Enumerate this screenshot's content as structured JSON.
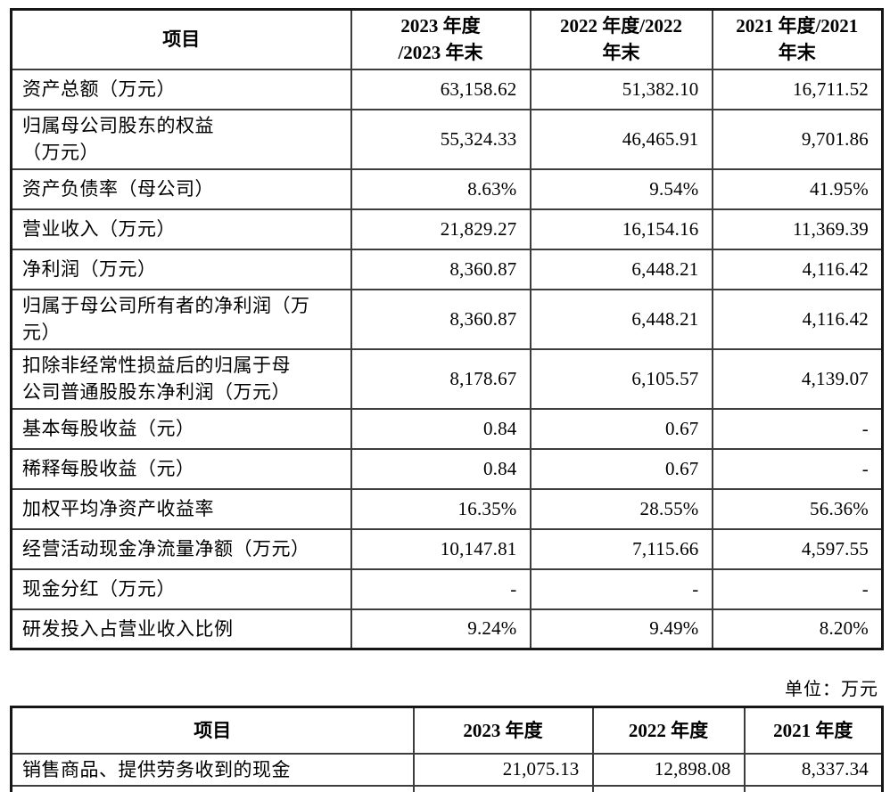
{
  "colors": {
    "background": "#ffffff",
    "text": "#000000",
    "outer_border": "#161616",
    "inner_border": "#3d3d3d"
  },
  "unit_label": "单位：万元",
  "table1": {
    "headers": [
      "项目",
      "2023 年度\n/2023 年末",
      "2022 年度/2022\n年末",
      "2021 年度/2021\n年末"
    ],
    "rows": [
      {
        "label": "资产总额（万元）",
        "values": [
          "63,158.62",
          "51,382.10",
          "16,711.52"
        ]
      },
      {
        "label": "归属母公司股东的权益\n（万元）",
        "values": [
          "55,324.33",
          "46,465.91",
          "9,701.86"
        ]
      },
      {
        "label": "资产负债率（母公司）",
        "values": [
          "8.63%",
          "9.54%",
          "41.95%"
        ]
      },
      {
        "label": "营业收入（万元）",
        "values": [
          "21,829.27",
          "16,154.16",
          "11,369.39"
        ]
      },
      {
        "label": "净利润（万元）",
        "values": [
          "8,360.87",
          "6,448.21",
          "4,116.42"
        ]
      },
      {
        "label": "归属于母公司所有者的净利润（万\n元）",
        "values": [
          "8,360.87",
          "6,448.21",
          "4,116.42"
        ]
      },
      {
        "label": "扣除非经常性损益后的归属于母\n公司普通股股东净利润（万元）",
        "values": [
          "8,178.67",
          "6,105.57",
          "4,139.07"
        ]
      },
      {
        "label": "基本每股收益（元）",
        "values": [
          "0.84",
          "0.67",
          "-"
        ]
      },
      {
        "label": "稀释每股收益（元）",
        "values": [
          "0.84",
          "0.67",
          "-"
        ]
      },
      {
        "label": "加权平均净资产收益率",
        "values": [
          "16.35%",
          "28.55%",
          "56.36%"
        ]
      },
      {
        "label": "经营活动现金净流量净额（万元）",
        "values": [
          "10,147.81",
          "7,115.66",
          "4,597.55"
        ]
      },
      {
        "label": "现金分红（万元）",
        "values": [
          "-",
          "-",
          "-"
        ]
      },
      {
        "label": "研发投入占营业收入比例",
        "values": [
          "9.24%",
          "9.49%",
          "8.20%"
        ]
      }
    ]
  },
  "table2": {
    "headers": [
      "项目",
      "2023 年度",
      "2022 年度",
      "2021 年度"
    ],
    "rows": [
      {
        "label": "销售商品、提供劳务收到的现金",
        "values": [
          "21,075.13",
          "12,898.08",
          "8,337.34"
        ]
      }
    ]
  }
}
